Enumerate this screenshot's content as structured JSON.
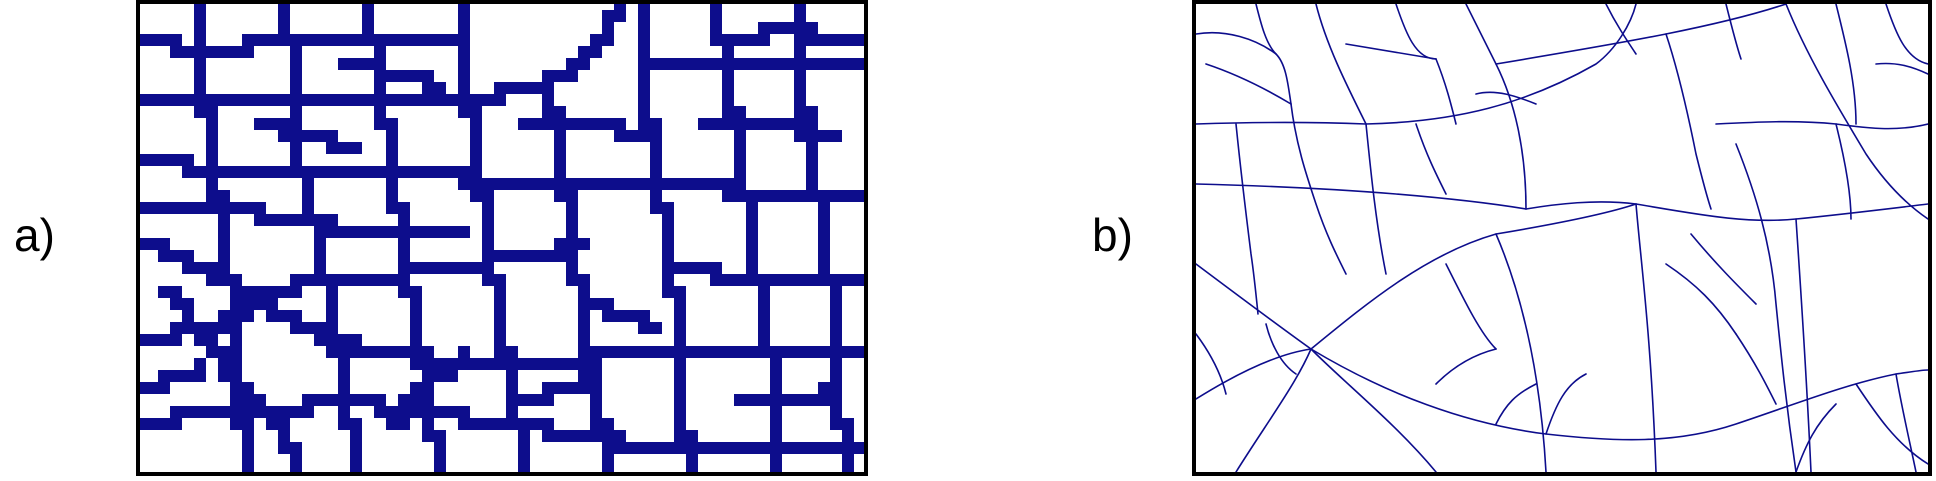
{
  "panel_a": {
    "label": "a)"
  },
  "panel_b": {
    "label": "b)"
  },
  "colors": {
    "network": "#0d0d8c",
    "frame": "#000000",
    "background": "#ffffff"
  }
}
